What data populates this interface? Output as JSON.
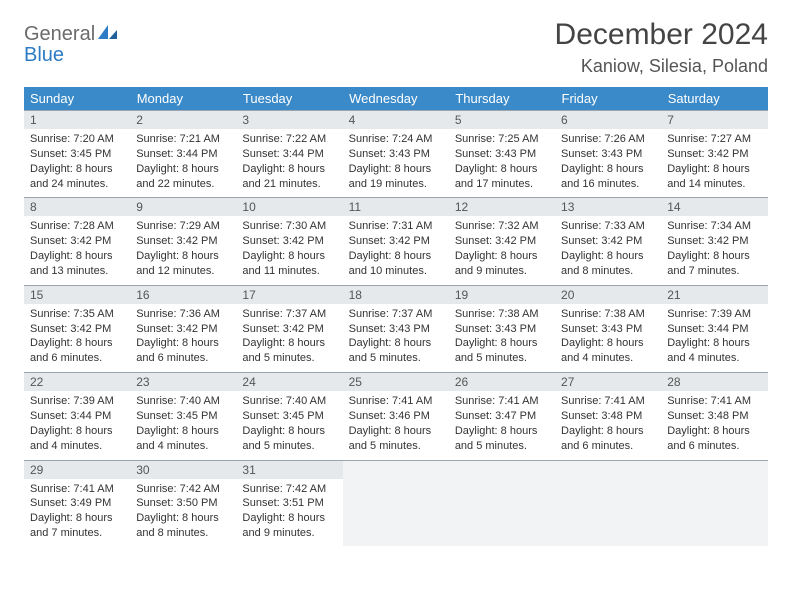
{
  "logo": {
    "text1": "General",
    "text2": "Blue",
    "color1": "#6b6b6b",
    "color2": "#2d7bc4",
    "icon_color": "#2d7bc4"
  },
  "title": "December 2024",
  "location": "Kaniow, Silesia, Poland",
  "header_bg": "#3a8ac9",
  "header_fg": "#ffffff",
  "daynum_bg": "#e6e9eb",
  "rule_color": "#9aa5af",
  "empty_bg": "#f2f3f4",
  "weekdays": [
    "Sunday",
    "Monday",
    "Tuesday",
    "Wednesday",
    "Thursday",
    "Friday",
    "Saturday"
  ],
  "weeks": [
    [
      {
        "n": "1",
        "sr": "7:20 AM",
        "ss": "3:45 PM",
        "dl": "8 hours and 24 minutes."
      },
      {
        "n": "2",
        "sr": "7:21 AM",
        "ss": "3:44 PM",
        "dl": "8 hours and 22 minutes."
      },
      {
        "n": "3",
        "sr": "7:22 AM",
        "ss": "3:44 PM",
        "dl": "8 hours and 21 minutes."
      },
      {
        "n": "4",
        "sr": "7:24 AM",
        "ss": "3:43 PM",
        "dl": "8 hours and 19 minutes."
      },
      {
        "n": "5",
        "sr": "7:25 AM",
        "ss": "3:43 PM",
        "dl": "8 hours and 17 minutes."
      },
      {
        "n": "6",
        "sr": "7:26 AM",
        "ss": "3:43 PM",
        "dl": "8 hours and 16 minutes."
      },
      {
        "n": "7",
        "sr": "7:27 AM",
        "ss": "3:42 PM",
        "dl": "8 hours and 14 minutes."
      }
    ],
    [
      {
        "n": "8",
        "sr": "7:28 AM",
        "ss": "3:42 PM",
        "dl": "8 hours and 13 minutes."
      },
      {
        "n": "9",
        "sr": "7:29 AM",
        "ss": "3:42 PM",
        "dl": "8 hours and 12 minutes."
      },
      {
        "n": "10",
        "sr": "7:30 AM",
        "ss": "3:42 PM",
        "dl": "8 hours and 11 minutes."
      },
      {
        "n": "11",
        "sr": "7:31 AM",
        "ss": "3:42 PM",
        "dl": "8 hours and 10 minutes."
      },
      {
        "n": "12",
        "sr": "7:32 AM",
        "ss": "3:42 PM",
        "dl": "8 hours and 9 minutes."
      },
      {
        "n": "13",
        "sr": "7:33 AM",
        "ss": "3:42 PM",
        "dl": "8 hours and 8 minutes."
      },
      {
        "n": "14",
        "sr": "7:34 AM",
        "ss": "3:42 PM",
        "dl": "8 hours and 7 minutes."
      }
    ],
    [
      {
        "n": "15",
        "sr": "7:35 AM",
        "ss": "3:42 PM",
        "dl": "8 hours and 6 minutes."
      },
      {
        "n": "16",
        "sr": "7:36 AM",
        "ss": "3:42 PM",
        "dl": "8 hours and 6 minutes."
      },
      {
        "n": "17",
        "sr": "7:37 AM",
        "ss": "3:42 PM",
        "dl": "8 hours and 5 minutes."
      },
      {
        "n": "18",
        "sr": "7:37 AM",
        "ss": "3:43 PM",
        "dl": "8 hours and 5 minutes."
      },
      {
        "n": "19",
        "sr": "7:38 AM",
        "ss": "3:43 PM",
        "dl": "8 hours and 5 minutes."
      },
      {
        "n": "20",
        "sr": "7:38 AM",
        "ss": "3:43 PM",
        "dl": "8 hours and 4 minutes."
      },
      {
        "n": "21",
        "sr": "7:39 AM",
        "ss": "3:44 PM",
        "dl": "8 hours and 4 minutes."
      }
    ],
    [
      {
        "n": "22",
        "sr": "7:39 AM",
        "ss": "3:44 PM",
        "dl": "8 hours and 4 minutes."
      },
      {
        "n": "23",
        "sr": "7:40 AM",
        "ss": "3:45 PM",
        "dl": "8 hours and 4 minutes."
      },
      {
        "n": "24",
        "sr": "7:40 AM",
        "ss": "3:45 PM",
        "dl": "8 hours and 5 minutes."
      },
      {
        "n": "25",
        "sr": "7:41 AM",
        "ss": "3:46 PM",
        "dl": "8 hours and 5 minutes."
      },
      {
        "n": "26",
        "sr": "7:41 AM",
        "ss": "3:47 PM",
        "dl": "8 hours and 5 minutes."
      },
      {
        "n": "27",
        "sr": "7:41 AM",
        "ss": "3:48 PM",
        "dl": "8 hours and 6 minutes."
      },
      {
        "n": "28",
        "sr": "7:41 AM",
        "ss": "3:48 PM",
        "dl": "8 hours and 6 minutes."
      }
    ],
    [
      {
        "n": "29",
        "sr": "7:41 AM",
        "ss": "3:49 PM",
        "dl": "8 hours and 7 minutes."
      },
      {
        "n": "30",
        "sr": "7:42 AM",
        "ss": "3:50 PM",
        "dl": "8 hours and 8 minutes."
      },
      {
        "n": "31",
        "sr": "7:42 AM",
        "ss": "3:51 PM",
        "dl": "8 hours and 9 minutes."
      },
      null,
      null,
      null,
      null
    ]
  ],
  "labels": {
    "sunrise": "Sunrise: ",
    "sunset": "Sunset: ",
    "daylight": "Daylight: "
  }
}
